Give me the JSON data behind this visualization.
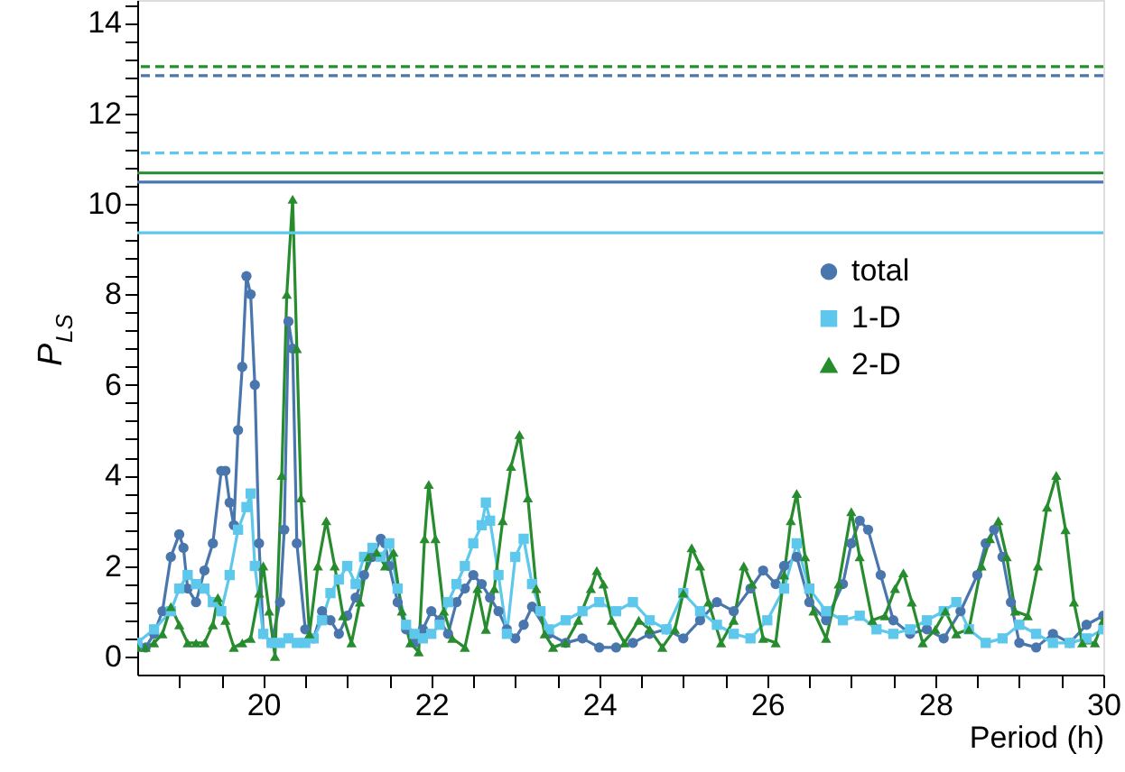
{
  "chart_data": {
    "type": "line",
    "xlabel": "Period (h)",
    "ylabel": "P$_{LS}$",
    "xlim": [
      18.5,
      30
    ],
    "ylim": [
      -0.4,
      14.5
    ],
    "xticks": [
      {
        "value": 19,
        "label": null
      },
      {
        "value": 19.5,
        "label": null
      },
      20,
      {
        "value": 20.5,
        "label": null
      },
      {
        "value": 21,
        "label": null
      },
      {
        "value": 21.5,
        "label": null
      },
      22,
      {
        "value": 22.5,
        "label": null
      },
      {
        "value": 23,
        "label": null
      },
      {
        "value": 23.5,
        "label": null
      },
      24,
      {
        "value": 24.5,
        "label": null
      },
      {
        "value": 25,
        "label": null
      },
      {
        "value": 25.5,
        "label": null
      },
      26,
      {
        "value": 26.5,
        "label": null
      },
      {
        "value": 27,
        "label": null
      },
      {
        "value": 27.5,
        "label": null
      },
      28,
      {
        "value": 28.5,
        "label": null
      },
      {
        "value": 29,
        "label": null
      },
      {
        "value": 29.5,
        "label": null
      },
      30
    ],
    "yticks": [
      0,
      {
        "value": 0.4,
        "label": null
      },
      {
        "value": 0.8,
        "label": null
      },
      {
        "value": 1.2,
        "label": null
      },
      {
        "value": 1.6,
        "label": null
      },
      2,
      {
        "value": 2.4,
        "label": null
      },
      {
        "value": 2.8,
        "label": null
      },
      {
        "value": 3.2,
        "label": null
      },
      {
        "value": 3.6,
        "label": null
      },
      4,
      {
        "value": 4.4,
        "label": null
      },
      {
        "value": 4.8,
        "label": null
      },
      {
        "value": 5.2,
        "label": null
      },
      {
        "value": 5.6,
        "label": null
      },
      6,
      {
        "value": 6.4,
        "label": null
      },
      {
        "value": 6.8,
        "label": null
      },
      {
        "value": 7.2,
        "label": null
      },
      {
        "value": 7.6,
        "label": null
      },
      8,
      {
        "value": 8.4,
        "label": null
      },
      {
        "value": 8.8,
        "label": null
      },
      {
        "value": 9.2,
        "label": null
      },
      {
        "value": 9.6,
        "label": null
      },
      10,
      {
        "value": 10.4,
        "label": null
      },
      {
        "value": 10.8,
        "label": null
      },
      {
        "value": 11.2,
        "label": null
      },
      {
        "value": 11.6,
        "label": null
      },
      12,
      {
        "value": 12.4,
        "label": null
      },
      {
        "value": 12.8,
        "label": null
      },
      {
        "value": 13.2,
        "label": null
      },
      {
        "value": 13.6,
        "label": null
      },
      14,
      {
        "value": 14.4,
        "label": null
      }
    ],
    "legend": "right",
    "series": [
      {
        "name": "total",
        "color": "#4a76ae",
        "marker": "circle",
        "x": [
          18.5,
          18.6,
          18.7,
          18.8,
          18.9,
          19.0,
          19.05,
          19.1,
          19.2,
          19.3,
          19.4,
          19.5,
          19.55,
          19.6,
          19.65,
          19.7,
          19.75,
          19.8,
          19.85,
          19.9,
          19.95,
          20.0,
          20.1,
          20.2,
          20.25,
          20.3,
          20.35,
          20.4,
          20.5,
          20.6,
          20.7,
          20.8,
          20.9,
          21.0,
          21.1,
          21.2,
          21.3,
          21.4,
          21.45,
          21.5,
          21.6,
          21.7,
          21.8,
          21.9,
          22.0,
          22.1,
          22.2,
          22.3,
          22.4,
          22.5,
          22.6,
          22.7,
          22.8,
          22.9,
          23.0,
          23.1,
          23.2,
          23.4,
          23.6,
          23.8,
          24.0,
          24.2,
          24.4,
          24.6,
          24.8,
          25.0,
          25.2,
          25.4,
          25.6,
          25.8,
          25.95,
          26.1,
          26.2,
          26.35,
          26.5,
          26.7,
          26.9,
          27.0,
          27.1,
          27.2,
          27.35,
          27.5,
          27.7,
          27.9,
          28.1,
          28.3,
          28.5,
          28.6,
          28.7,
          28.8,
          28.9,
          29.0,
          29.2,
          29.4,
          29.6,
          29.8,
          30.0
        ],
        "values": [
          0.3,
          0.2,
          0.5,
          1.0,
          2.2,
          2.7,
          2.4,
          1.5,
          1.2,
          1.9,
          2.5,
          4.1,
          4.1,
          3.4,
          2.9,
          5.0,
          6.4,
          8.4,
          8.0,
          6.0,
          2.5,
          0.5,
          0.3,
          1.2,
          2.8,
          7.4,
          6.8,
          2.5,
          0.6,
          0.4,
          1.0,
          0.8,
          0.5,
          0.9,
          1.3,
          1.8,
          2.2,
          2.6,
          2.5,
          2.0,
          1.2,
          0.6,
          0.3,
          0.6,
          1.0,
          0.8,
          0.5,
          1.2,
          1.5,
          1.8,
          1.6,
          1.3,
          1.0,
          0.6,
          0.4,
          0.7,
          1.1,
          0.5,
          0.3,
          0.4,
          0.2,
          0.2,
          0.3,
          0.5,
          0.6,
          0.4,
          0.8,
          1.2,
          1.0,
          1.5,
          1.9,
          1.6,
          2.0,
          2.2,
          1.2,
          0.8,
          1.6,
          2.5,
          3.0,
          2.8,
          1.8,
          0.8,
          0.5,
          0.6,
          0.4,
          1.0,
          1.8,
          2.5,
          2.8,
          2.2,
          1.2,
          0.3,
          0.2,
          0.5,
          0.3,
          0.7,
          0.9
        ]
      },
      {
        "name": "1-D",
        "color": "#5ec8ec",
        "marker": "square",
        "x": [
          18.5,
          18.7,
          18.9,
          19.0,
          19.1,
          19.2,
          19.3,
          19.4,
          19.5,
          19.6,
          19.7,
          19.8,
          19.85,
          19.9,
          20.0,
          20.1,
          20.2,
          20.3,
          20.4,
          20.5,
          20.6,
          20.7,
          20.8,
          20.9,
          21.0,
          21.1,
          21.2,
          21.3,
          21.4,
          21.5,
          21.6,
          21.7,
          21.8,
          21.9,
          22.0,
          22.1,
          22.2,
          22.3,
          22.4,
          22.5,
          22.6,
          22.65,
          22.7,
          22.8,
          22.9,
          23.0,
          23.1,
          23.2,
          23.3,
          23.4,
          23.6,
          23.8,
          24.0,
          24.2,
          24.4,
          24.6,
          24.8,
          25.0,
          25.2,
          25.4,
          25.6,
          25.8,
          26.0,
          26.2,
          26.35,
          26.5,
          26.7,
          26.9,
          27.1,
          27.3,
          27.5,
          27.7,
          27.9,
          28.1,
          28.25,
          28.4,
          28.6,
          28.8,
          29.0,
          29.2,
          29.4,
          29.6,
          29.8,
          30.0
        ],
        "values": [
          0.3,
          0.6,
          1.0,
          1.5,
          1.8,
          1.6,
          1.5,
          1.2,
          1.0,
          1.8,
          2.8,
          3.3,
          3.6,
          2.0,
          0.5,
          0.3,
          0.3,
          0.4,
          0.3,
          0.3,
          0.4,
          0.8,
          1.4,
          1.7,
          2.0,
          1.6,
          2.2,
          2.4,
          2.2,
          2.5,
          1.5,
          0.7,
          0.5,
          0.4,
          0.5,
          0.7,
          1.2,
          1.6,
          2.0,
          2.5,
          2.9,
          3.4,
          3.0,
          1.8,
          0.5,
          2.2,
          2.6,
          1.6,
          1.0,
          0.6,
          0.8,
          1.0,
          1.2,
          1.0,
          1.2,
          0.8,
          0.6,
          1.4,
          1.0,
          0.7,
          0.5,
          0.4,
          0.8,
          1.5,
          2.5,
          1.5,
          1.0,
          0.8,
          0.9,
          0.6,
          0.5,
          0.6,
          0.8,
          1.0,
          1.2,
          0.6,
          0.3,
          0.4,
          0.7,
          0.5,
          0.3,
          0.3,
          0.4,
          0.6
        ]
      },
      {
        "name": "2-D",
        "color": "#268c2e",
        "marker": "triangle",
        "x": [
          18.5,
          18.6,
          18.7,
          18.8,
          18.9,
          19.0,
          19.1,
          19.2,
          19.3,
          19.4,
          19.46,
          19.55,
          19.65,
          19.75,
          19.85,
          19.95,
          20.0,
          20.07,
          20.14,
          20.22,
          20.28,
          20.35,
          20.4,
          20.45,
          20.55,
          20.65,
          20.75,
          20.85,
          20.95,
          21.05,
          21.15,
          21.25,
          21.35,
          21.45,
          21.55,
          21.65,
          21.75,
          21.85,
          21.92,
          21.97,
          22.05,
          22.15,
          22.25,
          22.4,
          22.55,
          22.65,
          22.75,
          22.85,
          22.95,
          23.05,
          23.15,
          23.25,
          23.35,
          23.45,
          23.6,
          23.75,
          23.9,
          23.97,
          24.05,
          24.15,
          24.3,
          24.47,
          24.6,
          24.75,
          24.9,
          25.0,
          25.1,
          25.2,
          25.3,
          25.45,
          25.6,
          25.72,
          25.82,
          25.95,
          26.1,
          26.2,
          26.28,
          26.35,
          26.45,
          26.55,
          26.7,
          26.85,
          27.0,
          27.1,
          27.25,
          27.4,
          27.52,
          27.62,
          27.72,
          27.85,
          28.0,
          28.12,
          28.25,
          28.4,
          28.55,
          28.65,
          28.75,
          28.85,
          28.95,
          29.1,
          29.22,
          29.33,
          29.44,
          29.55,
          29.65,
          29.75,
          29.9,
          30.0
        ],
        "values": [
          0.2,
          0.2,
          0.3,
          0.5,
          1.1,
          0.7,
          0.3,
          0.3,
          0.3,
          0.7,
          1.3,
          0.8,
          0.2,
          0.3,
          0.4,
          1.4,
          2.0,
          1.0,
          0.0,
          4.0,
          8.0,
          10.1,
          6.8,
          3.5,
          0.5,
          2.0,
          3.0,
          2.0,
          0.9,
          0.3,
          1.2,
          2.2,
          2.3,
          2.0,
          2.3,
          1.0,
          0.3,
          0.1,
          2.6,
          3.8,
          2.6,
          1.0,
          0.4,
          0.2,
          1.5,
          0.6,
          1.5,
          3.0,
          4.2,
          4.9,
          3.5,
          1.5,
          0.5,
          0.2,
          0.3,
          0.8,
          1.5,
          1.9,
          1.6,
          0.8,
          0.3,
          0.8,
          0.6,
          0.2,
          0.6,
          1.4,
          2.4,
          2.0,
          1.2,
          0.3,
          0.8,
          2.0,
          1.6,
          0.4,
          0.3,
          1.8,
          3.0,
          3.6,
          2.2,
          1.0,
          0.4,
          1.6,
          3.2,
          2.2,
          0.8,
          0.9,
          1.5,
          1.85,
          1.2,
          0.3,
          0.6,
          1.0,
          0.5,
          0.6,
          2.0,
          2.6,
          3.0,
          2.2,
          1.0,
          0.9,
          2.0,
          3.3,
          4.0,
          2.8,
          1.2,
          0.3,
          0.3,
          0.8
        ]
      }
    ],
    "ref_lines": [
      {
        "axis": "y",
        "value": 13.03,
        "color": "#268c2e",
        "line_style": "dashed"
      },
      {
        "axis": "y",
        "value": 12.83,
        "color": "#4a76ae",
        "line_style": "dashed"
      },
      {
        "axis": "y",
        "value": 11.12,
        "color": "#5ec8ec",
        "line_style": "dashed"
      },
      {
        "axis": "y",
        "value": 10.68,
        "color": "#268c2e",
        "line_style": "solid"
      },
      {
        "axis": "y",
        "value": 10.48,
        "color": "#4a76ae",
        "line_style": "solid"
      },
      {
        "axis": "y",
        "value": 9.36,
        "color": "#5ec8ec",
        "line_style": "solid"
      }
    ]
  }
}
